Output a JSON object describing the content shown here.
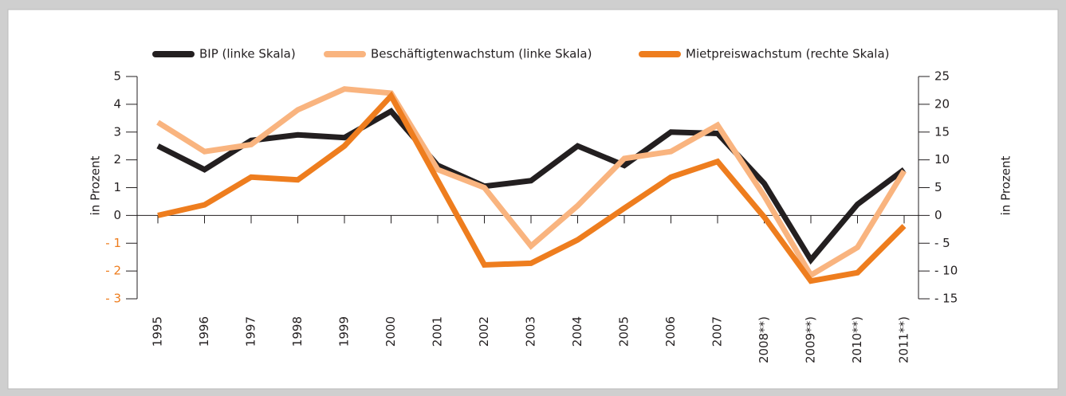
{
  "chart_data": {
    "type": "line",
    "categories": [
      "1995",
      "1996",
      "1997",
      "1998",
      "1999",
      "2000",
      "2001",
      "2002",
      "2003",
      "2004",
      "2005",
      "2006",
      "2007",
      "2008**)",
      "2009**)",
      "2010**)",
      "2011**)"
    ],
    "series": [
      {
        "name": "BIP (linke Skala)",
        "color": "#231f20",
        "values": [
          2.5,
          1.65,
          2.7,
          2.9,
          2.8,
          3.75,
          1.8,
          1.05,
          1.25,
          2.5,
          1.8,
          3.0,
          2.95,
          1.15,
          -1.6,
          0.4,
          1.65
        ]
      },
      {
        "name": "Beschäftigtenwachstum (linke Skala)",
        "color": "#f9b47f",
        "values": [
          3.35,
          2.3,
          2.55,
          3.8,
          4.55,
          4.4,
          1.65,
          1.0,
          -1.1,
          0.35,
          2.05,
          2.3,
          3.25,
          0.7,
          -2.15,
          -1.15,
          1.6
        ]
      },
      {
        "name": "Mietpreiswachstum (rechte Skala)",
        "color": "#ee7d1e",
        "axis": "y2",
        "values": [
          0,
          1.9,
          6.9,
          6.4,
          12.5,
          21.5,
          6.3,
          -8.9,
          -8.6,
          -4.4,
          1.3,
          6.9,
          9.7,
          -0.3,
          -11.8,
          -10.3,
          -1.9
        ]
      }
    ],
    "y_label": "in Prozent",
    "y2_label": "in Prozent",
    "ylim": [
      -3,
      5
    ],
    "yticks": [
      5,
      4,
      3,
      2,
      1,
      0,
      {
        "value": -1,
        "label": "- 1"
      },
      {
        "value": -2,
        "label": "- 2"
      },
      {
        "value": -3,
        "label": "- 3"
      }
    ],
    "y2lim": [
      -15,
      25
    ],
    "y2ticks": [
      25,
      20,
      15,
      10,
      5,
      0,
      {
        "value": -5,
        "label": "- 5"
      },
      {
        "value": -10,
        "label": "- 10"
      },
      {
        "value": -15,
        "label": "- 15"
      }
    ],
    "negative_tick_color": "#ee7d1e",
    "legend": "top"
  }
}
